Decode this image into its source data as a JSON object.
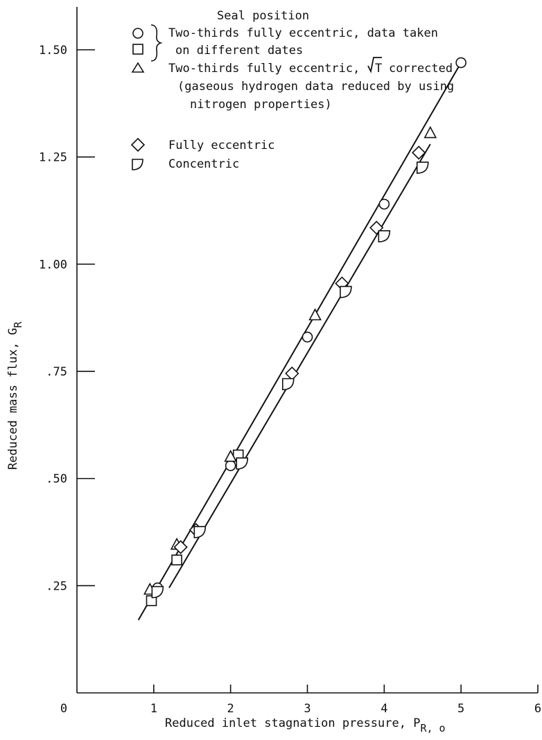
{
  "chart_data": {
    "type": "scatter",
    "title": "",
    "xlabel": "Reduced inlet stagnation pressure, P",
    "xlabel_sub": "R, o",
    "ylabel": "Reduced mass flux, G",
    "ylabel_sub": "R",
    "xlim": [
      0,
      6
    ],
    "ylim": [
      0,
      1.6
    ],
    "x_ticks": [
      {
        "value": 1,
        "label": "1"
      },
      {
        "value": 2,
        "label": "2"
      },
      {
        "value": 3,
        "label": "3"
      },
      {
        "value": 4,
        "label": "4"
      },
      {
        "value": 5,
        "label": "5"
      },
      {
        "value": 6,
        "label": "6"
      }
    ],
    "y_ticks": [
      {
        "value": 0.25,
        "label": ".25"
      },
      {
        "value": 0.5,
        "label": ".50"
      },
      {
        "value": 0.75,
        "label": ".75"
      },
      {
        "value": 1.0,
        "label": "1.00"
      },
      {
        "value": 1.25,
        "label": "1.25"
      },
      {
        "value": 1.5,
        "label": "1.50"
      }
    ],
    "origin_label": "0",
    "legend": {
      "title": "Seal position",
      "entries": [
        {
          "lines": [
            "Two-thirds fully eccentric, data taken",
            "on different dates"
          ]
        },
        {
          "lines": [
            "Two-thirds fully eccentric,",
            "T",
            "corrected"
          ]
        },
        {
          "lines": [
            "(gaseous hydrogen data reduced by using",
            "nitrogen properties)"
          ]
        },
        {
          "lines": [
            "Fully eccentric"
          ]
        },
        {
          "lines": [
            "Concentric"
          ]
        }
      ]
    },
    "series": [
      {
        "marker": "circle",
        "points": [
          [
            1.05,
            0.245
          ],
          [
            2.0,
            0.53
          ],
          [
            3.0,
            0.83
          ],
          [
            4.0,
            1.14
          ],
          [
            5.0,
            1.47
          ]
        ]
      },
      {
        "marker": "square",
        "points": [
          [
            0.97,
            0.215
          ],
          [
            1.3,
            0.31
          ],
          [
            2.1,
            0.555
          ]
        ]
      },
      {
        "marker": "triangle",
        "points": [
          [
            0.95,
            0.24
          ],
          [
            1.3,
            0.345
          ],
          [
            2.0,
            0.55
          ],
          [
            3.1,
            0.88
          ],
          [
            4.6,
            1.305
          ]
        ]
      },
      {
        "marker": "diamond",
        "points": [
          [
            1.35,
            0.34
          ],
          [
            1.55,
            0.38
          ],
          [
            2.8,
            0.745
          ],
          [
            3.45,
            0.955
          ],
          [
            3.9,
            1.085
          ],
          [
            4.45,
            1.26
          ]
        ]
      },
      {
        "marker": "half-circle",
        "points": [
          [
            1.05,
            0.235
          ],
          [
            1.6,
            0.375
          ],
          [
            2.15,
            0.535
          ],
          [
            2.75,
            0.72
          ],
          [
            3.5,
            0.935
          ],
          [
            4.0,
            1.065
          ],
          [
            4.5,
            1.225
          ]
        ]
      }
    ],
    "fit_lines": [
      {
        "from": [
          0.8,
          0.17
        ],
        "to": [
          5.0,
          1.47
        ]
      },
      {
        "from": [
          1.2,
          0.245
        ],
        "to": [
          4.6,
          1.28
        ]
      }
    ],
    "grid": false
  }
}
